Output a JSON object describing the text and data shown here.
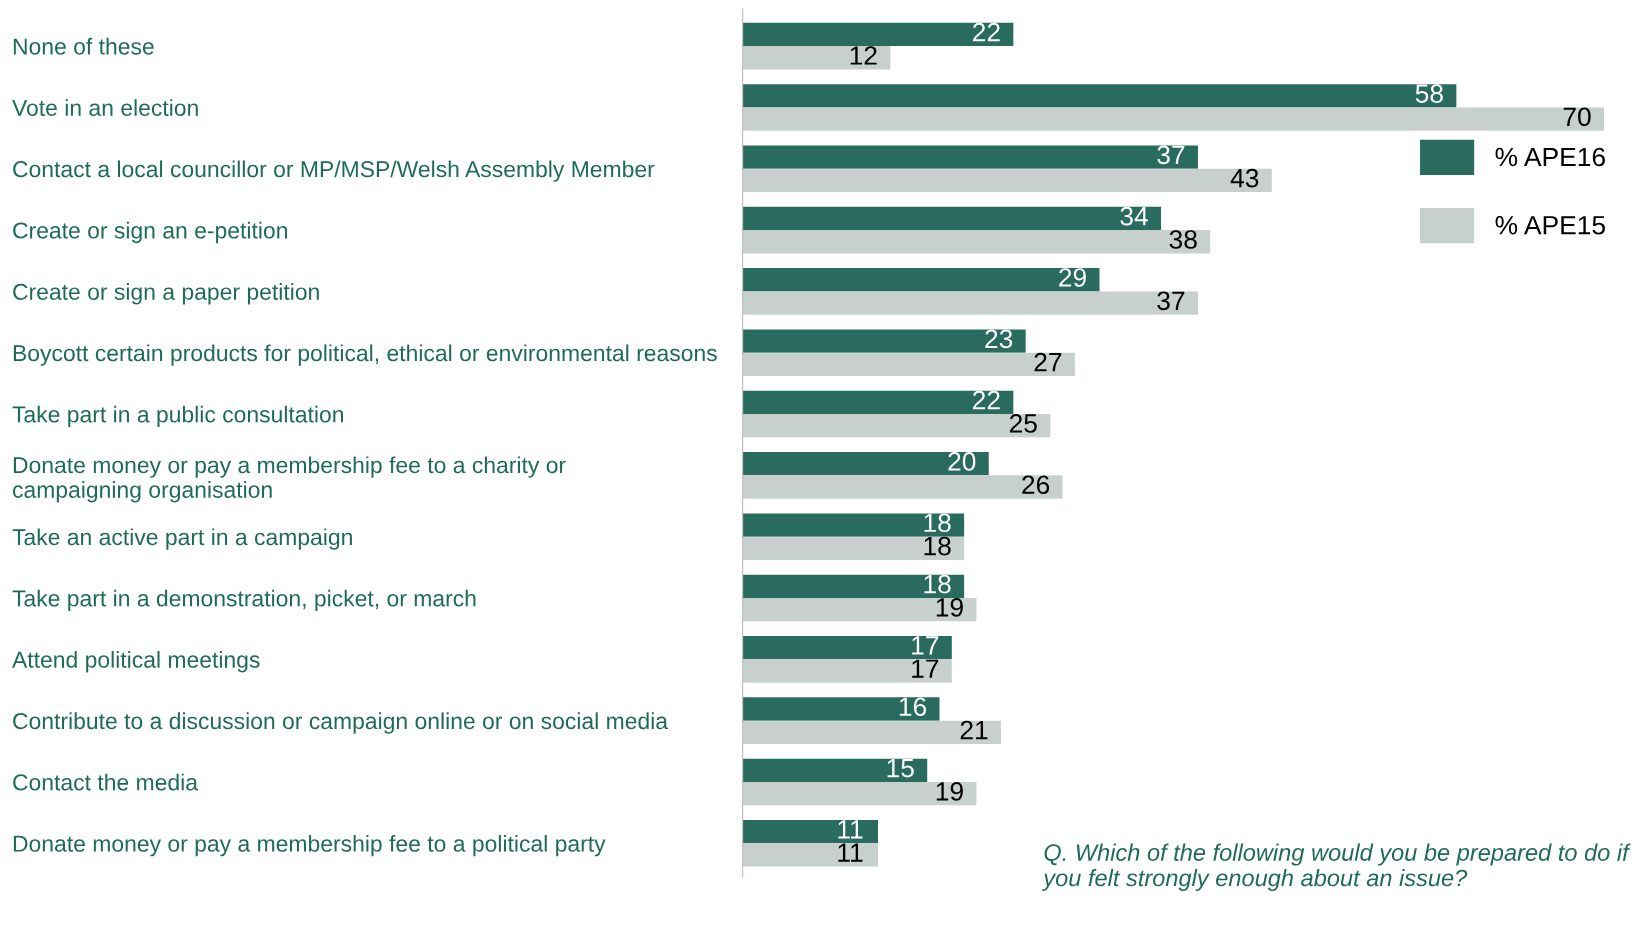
{
  "chart_data": {
    "type": "bar",
    "orientation": "horizontal",
    "data_labels": true,
    "legend": "right",
    "grid": false,
    "categories": [
      "None of these",
      "Vote in an election",
      "Contact a local councillor or MP/MSP/Welsh Assembly Member",
      "Create or sign an e-petition",
      "Create or sign a paper petition",
      "Boycott certain products for political, ethical or environmental reasons",
      "Take part in a public consultation",
      "Donate money or pay a membership fee to a charity or\ncampaigning organisation",
      "Take an active part in a campaign",
      "Take part in a demonstration, picket, or march",
      "Attend political meetings",
      "Contribute to a discussion or campaign online or on social media",
      "Contact the media",
      "Donate money or pay a membership fee to a political party"
    ],
    "series": [
      {
        "name": "% APE16",
        "color": "#2a6b5f",
        "values": [
          22,
          58,
          37,
          34,
          29,
          23,
          22,
          20,
          18,
          18,
          17,
          16,
          15,
          11
        ]
      },
      {
        "name": "% APE15",
        "color": "#c8d0cd",
        "values": [
          12,
          70,
          43,
          38,
          37,
          27,
          25,
          26,
          18,
          19,
          17,
          21,
          19,
          11
        ]
      }
    ],
    "annotations": [
      "Q. Which of the following would you be prepared to do if you felt strongly enough about an issue?"
    ]
  }
}
